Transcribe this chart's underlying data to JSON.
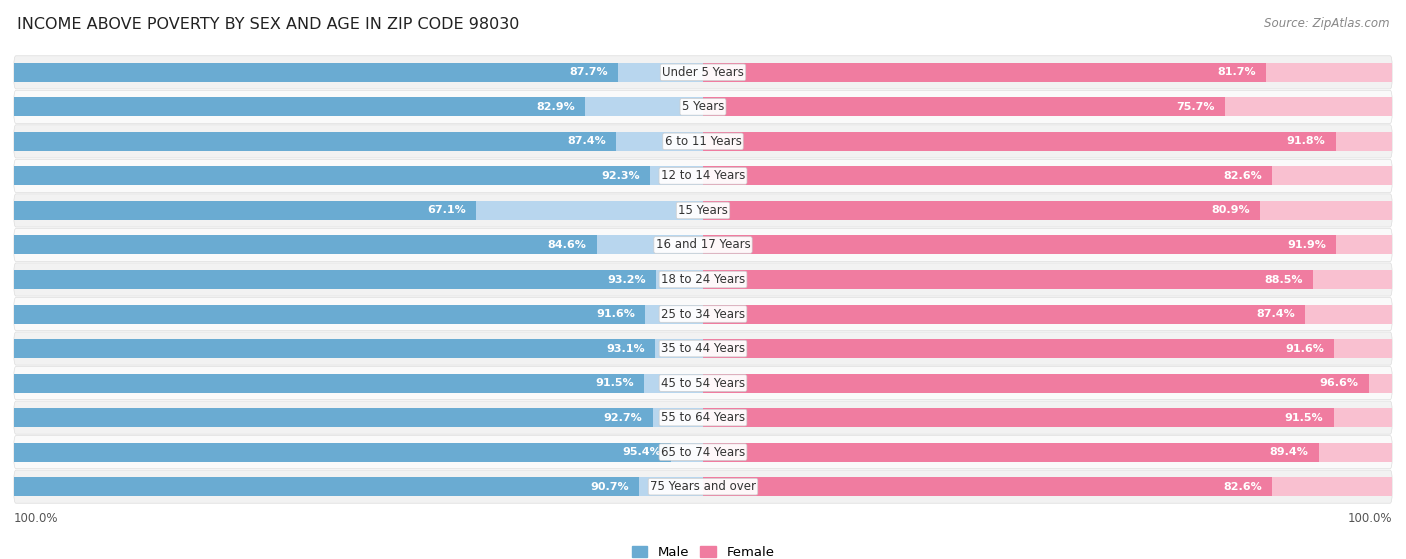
{
  "title": "INCOME ABOVE POVERTY BY SEX AND AGE IN ZIP CODE 98030",
  "source": "Source: ZipAtlas.com",
  "categories": [
    "Under 5 Years",
    "5 Years",
    "6 to 11 Years",
    "12 to 14 Years",
    "15 Years",
    "16 and 17 Years",
    "18 to 24 Years",
    "25 to 34 Years",
    "35 to 44 Years",
    "45 to 54 Years",
    "55 to 64 Years",
    "65 to 74 Years",
    "75 Years and over"
  ],
  "male_values": [
    87.7,
    82.9,
    87.4,
    92.3,
    67.1,
    84.6,
    93.2,
    91.6,
    93.1,
    91.5,
    92.7,
    95.4,
    90.7
  ],
  "female_values": [
    81.7,
    75.7,
    91.8,
    82.6,
    80.9,
    91.9,
    88.5,
    87.4,
    91.6,
    96.6,
    91.5,
    89.4,
    82.6
  ],
  "male_color": "#6aabd2",
  "female_color": "#f07ca0",
  "male_light_color": "#b8d6ee",
  "female_light_color": "#f9c0d0",
  "row_color_even": "#f2f2f2",
  "row_color_odd": "#fafafa",
  "background_color": "#ffffff",
  "title_fontsize": 11.5,
  "label_fontsize": 8.5,
  "value_fontsize": 8.0,
  "legend_fontsize": 9.5,
  "source_fontsize": 8.5,
  "max_value": 100.0,
  "bottom_label": "100.0%"
}
